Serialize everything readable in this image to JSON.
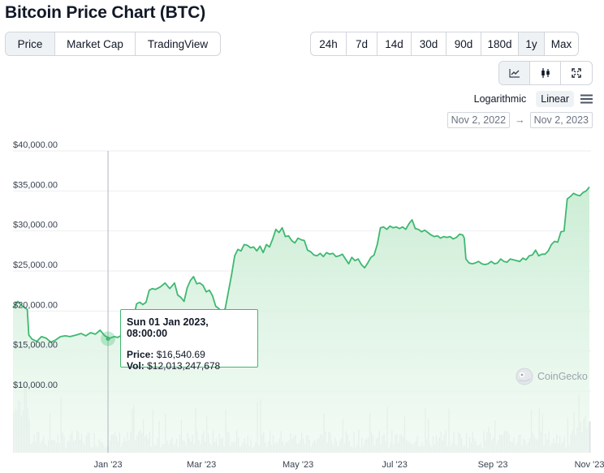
{
  "page": {
    "title": "Bitcoin Price Chart (BTC)"
  },
  "view_tabs": [
    {
      "label": "Price",
      "active": true
    },
    {
      "label": "Market Cap",
      "active": false
    },
    {
      "label": "TradingView",
      "active": false
    }
  ],
  "range_tabs": [
    {
      "label": "24h",
      "active": false
    },
    {
      "label": "7d",
      "active": false
    },
    {
      "label": "14d",
      "active": false
    },
    {
      "label": "30d",
      "active": false
    },
    {
      "label": "90d",
      "active": false
    },
    {
      "label": "180d",
      "active": false
    },
    {
      "label": "1y",
      "active": true
    },
    {
      "label": "Max",
      "active": false
    }
  ],
  "chart_types": [
    {
      "icon": "line-chart-icon",
      "active": true
    },
    {
      "icon": "candlestick-icon",
      "active": false
    },
    {
      "icon": "fullscreen-icon",
      "active": false
    }
  ],
  "scale": {
    "log_label": "Logarithmic",
    "linear_label": "Linear",
    "active": "Linear"
  },
  "date_range": {
    "from": "Nov 2, 2022",
    "arrow": "→",
    "to": "Nov 2, 2023"
  },
  "tooltip": {
    "date": "Sun 01 Jan 2023, 08:00:00",
    "price_label": "Price:",
    "price_value": "$16,540.69",
    "vol_label": "Vol:",
    "vol_value": "$12,013,247,678"
  },
  "watermark": {
    "text": "CoinGecko"
  },
  "colors": {
    "line": "#3fb871",
    "area": "#d6f1de",
    "volume": "#d1d5db",
    "crosshair": "#9ca3af"
  },
  "chart_data": {
    "type": "area",
    "ylabel": "",
    "xlabel": "",
    "yticks": [
      "$10,000.00",
      "$15,000.00",
      "$20,000.00",
      "$25,000.00",
      "$30,000.00",
      "$35,000.00",
      "$40,000.00"
    ],
    "ytick_values": [
      10000,
      15000,
      20000,
      25000,
      30000,
      35000,
      40000
    ],
    "ylim": [
      5000,
      40000
    ],
    "xticks": [
      "Jan '23",
      "Mar '23",
      "May '23",
      "Jul '23",
      "Sep '23",
      "Nov '23"
    ],
    "xtick_days": [
      60,
      119,
      180,
      241,
      303,
      364
    ],
    "grid": true,
    "series": [
      {
        "values": [
          [
            0,
            20400
          ],
          [
            3,
            21200
          ],
          [
            6,
            20600
          ],
          [
            9,
            20200
          ],
          [
            10,
            17000
          ],
          [
            12,
            16500
          ],
          [
            15,
            16200
          ],
          [
            18,
            16800
          ],
          [
            21,
            16600
          ],
          [
            24,
            16100
          ],
          [
            27,
            16400
          ],
          [
            30,
            16800
          ],
          [
            33,
            16900
          ],
          [
            36,
            16800
          ],
          [
            40,
            17000
          ],
          [
            43,
            17200
          ],
          [
            46,
            16900
          ],
          [
            49,
            17300
          ],
          [
            52,
            17100
          ],
          [
            55,
            17600
          ],
          [
            58,
            16900
          ],
          [
            61,
            16600
          ],
          [
            64,
            16800
          ],
          [
            66,
            16700
          ],
          [
            68,
            16900
          ],
          [
            70,
            17300
          ],
          [
            72,
            17700
          ],
          [
            74,
            18500
          ],
          [
            76,
            19000
          ],
          [
            78,
            20900
          ],
          [
            80,
            21100
          ],
          [
            82,
            20800
          ],
          [
            84,
            21100
          ],
          [
            86,
            22600
          ],
          [
            88,
            22800
          ],
          [
            90,
            22700
          ],
          [
            93,
            23000
          ],
          [
            96,
            23500
          ],
          [
            99,
            22800
          ],
          [
            102,
            23500
          ],
          [
            104,
            22000
          ],
          [
            106,
            21700
          ],
          [
            108,
            21200
          ],
          [
            110,
            22900
          ],
          [
            112,
            23800
          ],
          [
            114,
            24300
          ],
          [
            116,
            23400
          ],
          [
            118,
            23500
          ],
          [
            120,
            23200
          ],
          [
            122,
            22400
          ],
          [
            124,
            22600
          ],
          [
            126,
            21900
          ],
          [
            128,
            20600
          ],
          [
            130,
            20300
          ],
          [
            132,
            19900
          ],
          [
            134,
            20300
          ],
          [
            136,
            22400
          ],
          [
            138,
            24500
          ],
          [
            140,
            26900
          ],
          [
            142,
            27700
          ],
          [
            144,
            27500
          ],
          [
            146,
            28300
          ],
          [
            148,
            28200
          ],
          [
            150,
            27900
          ],
          [
            152,
            28000
          ],
          [
            154,
            27500
          ],
          [
            156,
            28100
          ],
          [
            158,
            27300
          ],
          [
            160,
            28300
          ],
          [
            162,
            28000
          ],
          [
            164,
            29000
          ],
          [
            166,
            30200
          ],
          [
            168,
            29800
          ],
          [
            170,
            30400
          ],
          [
            172,
            29300
          ],
          [
            174,
            29400
          ],
          [
            176,
            28800
          ],
          [
            178,
            28500
          ],
          [
            180,
            29100
          ],
          [
            182,
            28900
          ],
          [
            184,
            28800
          ],
          [
            186,
            27600
          ],
          [
            188,
            27400
          ],
          [
            190,
            27000
          ],
          [
            192,
            26900
          ],
          [
            194,
            27200
          ],
          [
            196,
            26800
          ],
          [
            198,
            27300
          ],
          [
            200,
            27100
          ],
          [
            202,
            27200
          ],
          [
            204,
            26800
          ],
          [
            206,
            26900
          ],
          [
            208,
            27100
          ],
          [
            210,
            26500
          ],
          [
            212,
            25900
          ],
          [
            214,
            26700
          ],
          [
            216,
            26300
          ],
          [
            218,
            26500
          ],
          [
            220,
            25800
          ],
          [
            222,
            25400
          ],
          [
            224,
            26000
          ],
          [
            226,
            26700
          ],
          [
            228,
            27000
          ],
          [
            230,
            28300
          ],
          [
            232,
            30400
          ],
          [
            234,
            30500
          ],
          [
            236,
            30200
          ],
          [
            238,
            30600
          ],
          [
            240,
            30400
          ],
          [
            242,
            30500
          ],
          [
            244,
            30300
          ],
          [
            246,
            30500
          ],
          [
            248,
            30200
          ],
          [
            250,
            30900
          ],
          [
            252,
            31400
          ],
          [
            254,
            30300
          ],
          [
            256,
            30200
          ],
          [
            258,
            29900
          ],
          [
            260,
            30100
          ],
          [
            262,
            29800
          ],
          [
            264,
            29500
          ],
          [
            266,
            29300
          ],
          [
            268,
            29400
          ],
          [
            270,
            29100
          ],
          [
            272,
            29300
          ],
          [
            274,
            29200
          ],
          [
            276,
            29300
          ],
          [
            278,
            29000
          ],
          [
            280,
            29200
          ],
          [
            282,
            29600
          ],
          [
            284,
            29500
          ],
          [
            285,
            29100
          ],
          [
            286,
            26500
          ],
          [
            288,
            26000
          ],
          [
            290,
            25900
          ],
          [
            292,
            26000
          ],
          [
            294,
            26200
          ],
          [
            296,
            25900
          ],
          [
            298,
            25800
          ],
          [
            300,
            25900
          ],
          [
            302,
            26200
          ],
          [
            304,
            25900
          ],
          [
            306,
            26000
          ],
          [
            308,
            26500
          ],
          [
            310,
            26200
          ],
          [
            312,
            26100
          ],
          [
            314,
            26500
          ],
          [
            316,
            26400
          ],
          [
            318,
            26300
          ],
          [
            320,
            26200
          ],
          [
            322,
            26600
          ],
          [
            324,
            26400
          ],
          [
            326,
            26900
          ],
          [
            328,
            27000
          ],
          [
            330,
            27600
          ],
          [
            332,
            26900
          ],
          [
            334,
            27100
          ],
          [
            336,
            27100
          ],
          [
            338,
            27500
          ],
          [
            340,
            28300
          ],
          [
            342,
            28700
          ],
          [
            344,
            28600
          ],
          [
            346,
            29900
          ],
          [
            348,
            30000
          ],
          [
            350,
            34000
          ],
          [
            352,
            34300
          ],
          [
            354,
            34700
          ],
          [
            356,
            34500
          ],
          [
            358,
            34400
          ],
          [
            360,
            34800
          ],
          [
            362,
            35000
          ],
          [
            364,
            35500
          ]
        ]
      }
    ],
    "tooltip_point": [
      60,
      16540.69
    ]
  }
}
